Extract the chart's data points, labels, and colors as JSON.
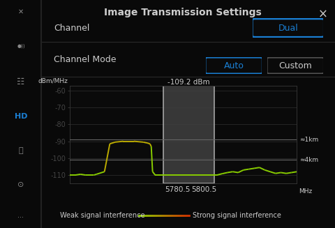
{
  "title": "Image Transmission Settings",
  "bg_color": "#090909",
  "sidebar_bg": "#0d0d0d",
  "main_bg": "#0a0a0a",
  "channel_label": "Channel",
  "channel_value": "Dual",
  "channel_mode_label": "Channel Mode",
  "channel_mode_options": [
    "Auto",
    "Custom"
  ],
  "dbm_label": "dBm/MHz",
  "mhz_label": "MHz",
  "annotation_text": "-109.2 dBm",
  "approx_1km": "≈1km",
  "approx_4km": "≈4km",
  "yticks": [
    -60,
    -70,
    -80,
    -90,
    -100,
    -110
  ],
  "ylim": [
    -115,
    -57
  ],
  "xlabel_ticks": [
    "5780.5",
    "5800.5"
  ],
  "highlight_x_start": 5770.0,
  "highlight_x_end": 5808.0,
  "highlight_color": "#404040",
  "highlight_alpha": 0.85,
  "highlight_border_color": "#bbbbbb",
  "x_range_start": 5700,
  "x_range_end": 5870,
  "weak_signal_color_green": "#88cc00",
  "weak_signal_color_yellow": "#bbaa00",
  "strong_signal_color": "#cc3300",
  "legend_weak": "Weak signal interference",
  "legend_strong": "Strong signal interference",
  "grid_color": "#2a2a2a",
  "text_color": "#cccccc",
  "blue_color": "#1a7fd4",
  "line_level_1km": -89,
  "line_level_4km": -101
}
